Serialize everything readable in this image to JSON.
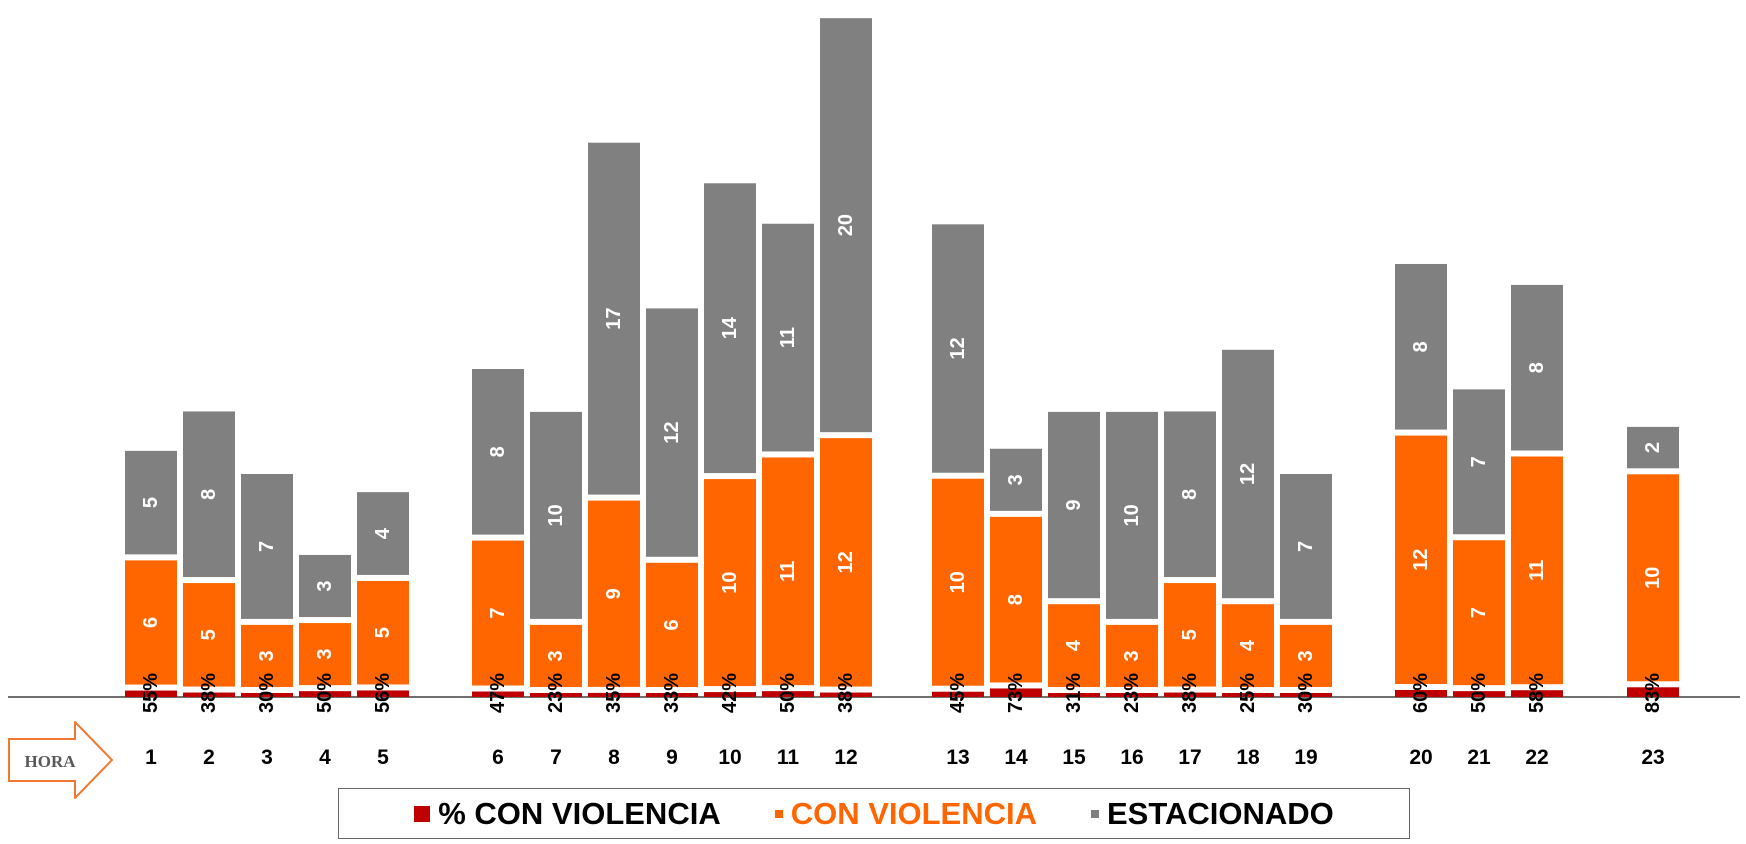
{
  "chart_data": {
    "type": "bar",
    "stacked": true,
    "categories": [
      "1",
      "2",
      "3",
      "4",
      "5",
      "6",
      "7",
      "8",
      "9",
      "10",
      "11",
      "12",
      "13",
      "14",
      "15",
      "16",
      "17",
      "18",
      "19",
      "20",
      "21",
      "22",
      "23"
    ],
    "series": [
      {
        "name": "% CON VIOLENCIA",
        "color": "#C00000",
        "values": [
          0.55,
          0.38,
          0.3,
          0.5,
          0.56,
          0.47,
          0.23,
          0.35,
          0.33,
          0.42,
          0.5,
          0.38,
          0.45,
          0.73,
          0.31,
          0.23,
          0.38,
          0.25,
          0.3,
          0.6,
          0.5,
          0.58,
          0.83
        ],
        "labels": [
          "55%",
          "38%",
          "30%",
          "50%",
          "56%",
          "47%",
          "23%",
          "35%",
          "33%",
          "42%",
          "50%",
          "38%",
          "45%",
          "73%",
          "31%",
          "23%",
          "38%",
          "25%",
          "30%",
          "60%",
          "50%",
          "58%",
          "83%"
        ]
      },
      {
        "name": "CON VIOLENCIA",
        "color": "#FF6600",
        "values": [
          6,
          5,
          3,
          3,
          5,
          7,
          3,
          9,
          6,
          10,
          11,
          12,
          10,
          8,
          4,
          3,
          5,
          4,
          3,
          12,
          7,
          11,
          10
        ]
      },
      {
        "name": "ESTACIONADO",
        "color": "#808080",
        "values": [
          5,
          8,
          7,
          3,
          4,
          8,
          10,
          17,
          12,
          14,
          11,
          20,
          12,
          3,
          9,
          10,
          8,
          12,
          7,
          8,
          7,
          8,
          2
        ]
      }
    ],
    "groups": [
      [
        1,
        5
      ],
      [
        6,
        12
      ],
      [
        13,
        19
      ],
      [
        20,
        22
      ],
      [
        23,
        23
      ]
    ],
    "xlabel": "HORA",
    "legend": "bottom"
  }
}
